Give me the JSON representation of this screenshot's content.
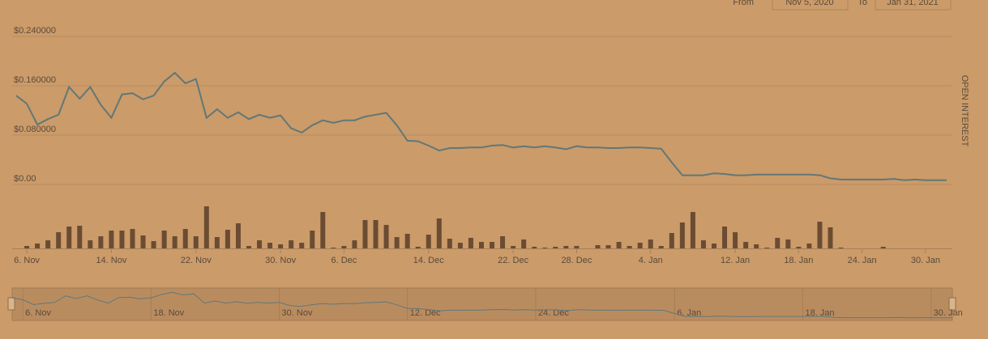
{
  "chart_data": {
    "type": "line",
    "y_label": "OPEN INTEREST",
    "range_selector": {
      "from_label": "From",
      "from": "Nov 5, 2020",
      "to_label": "To",
      "to": "Jan 31, 2021"
    },
    "x": [
      "2020-11-05",
      "2020-11-06",
      "2020-11-07",
      "2020-11-08",
      "2020-11-09",
      "2020-11-10",
      "2020-11-11",
      "2020-11-12",
      "2020-11-13",
      "2020-11-14",
      "2020-11-15",
      "2020-11-16",
      "2020-11-17",
      "2020-11-18",
      "2020-11-19",
      "2020-11-20",
      "2020-11-21",
      "2020-11-22",
      "2020-11-23",
      "2020-11-24",
      "2020-11-25",
      "2020-11-26",
      "2020-11-27",
      "2020-11-28",
      "2020-11-29",
      "2020-11-30",
      "2020-12-01",
      "2020-12-02",
      "2020-12-03",
      "2020-12-04",
      "2020-12-05",
      "2020-12-06",
      "2020-12-07",
      "2020-12-08",
      "2020-12-09",
      "2020-12-10",
      "2020-12-11",
      "2020-12-12",
      "2020-12-13",
      "2020-12-14",
      "2020-12-15",
      "2020-12-16",
      "2020-12-17",
      "2020-12-18",
      "2020-12-19",
      "2020-12-20",
      "2020-12-21",
      "2020-12-22",
      "2020-12-23",
      "2020-12-24",
      "2020-12-25",
      "2020-12-26",
      "2020-12-27",
      "2020-12-28",
      "2020-12-29",
      "2020-12-30",
      "2020-12-31",
      "2021-01-01",
      "2021-01-02",
      "2021-01-03",
      "2021-01-04",
      "2021-01-05",
      "2021-01-06",
      "2021-01-07",
      "2021-01-08",
      "2021-01-09",
      "2021-01-10",
      "2021-01-11",
      "2021-01-12",
      "2021-01-13",
      "2021-01-14",
      "2021-01-15",
      "2021-01-16",
      "2021-01-17",
      "2021-01-18",
      "2021-01-19",
      "2021-01-20",
      "2021-01-21",
      "2021-01-22",
      "2021-01-23",
      "2021-01-24",
      "2021-01-25",
      "2021-01-26",
      "2021-01-27",
      "2021-01-28",
      "2021-01-29",
      "2021-01-30",
      "2021-01-31",
      "2021-02-01"
    ],
    "series": [
      {
        "color": "#627777",
        "values": [
          0.144,
          0.131,
          0.097,
          0.106,
          0.113,
          0.158,
          0.139,
          0.158,
          0.129,
          0.108,
          0.146,
          0.148,
          0.138,
          0.144,
          0.167,
          0.181,
          0.164,
          0.171,
          0.108,
          0.122,
          0.108,
          0.117,
          0.106,
          0.113,
          0.108,
          0.112,
          0.091,
          0.084,
          0.096,
          0.104,
          0.1,
          0.104,
          0.104,
          0.11,
          0.113,
          0.116,
          0.096,
          0.071,
          0.07,
          0.063,
          0.055,
          0.059,
          0.059,
          0.06,
          0.06,
          0.063,
          0.064,
          0.06,
          0.062,
          0.06,
          0.062,
          0.06,
          0.057,
          0.062,
          0.06,
          0.06,
          0.059,
          0.059,
          0.06,
          0.06,
          0.059,
          0.058,
          0.036,
          0.015,
          0.015,
          0.015,
          0.018,
          0.017,
          0.015,
          0.015,
          0.016,
          0.016,
          0.016,
          0.016,
          0.016,
          0.016,
          0.015,
          0.01,
          0.008,
          0.008,
          0.008,
          0.008,
          0.008,
          0.009,
          0.007,
          0.008,
          0.007,
          0.007,
          0.007
        ]
      }
    ],
    "volume": {
      "color": "#6b4c33",
      "ylim": [
        0,
        55
      ],
      "values": [
        0,
        3,
        6,
        10,
        20,
        27,
        28,
        10,
        15,
        22,
        22,
        24,
        16,
        9,
        22,
        15,
        24,
        15,
        52,
        14,
        23,
        31,
        3,
        10,
        7,
        5,
        10,
        7,
        22,
        45,
        1,
        3,
        10,
        35,
        35,
        29,
        14,
        18,
        2,
        17,
        37,
        12,
        7,
        13,
        8,
        8,
        15,
        3,
        11,
        2,
        1,
        2,
        3,
        3,
        0,
        4,
        4,
        8,
        3,
        7,
        11,
        3,
        19,
        32,
        45,
        10,
        6,
        27,
        20,
        8,
        5,
        1,
        13,
        11,
        2,
        6,
        33,
        26,
        1,
        0,
        0,
        0,
        2,
        0,
        0,
        0,
        0,
        0,
        0
      ]
    },
    "xlim": [
      "2020-11-05",
      "2021-02-01"
    ],
    "ylim": [
      0,
      0.24
    ],
    "yticks": [
      {
        "value": 0,
        "label": "$0.00"
      },
      {
        "value": 0.08,
        "label": "$0.080000"
      },
      {
        "value": 0.16,
        "label": "$0.160000"
      },
      {
        "value": 0.24,
        "label": "$0.240000"
      }
    ],
    "xticks": [
      {
        "value": "2020-11-06",
        "label": "6. Nov"
      },
      {
        "value": "2020-11-14",
        "label": "14. Nov"
      },
      {
        "value": "2020-11-22",
        "label": "22. Nov"
      },
      {
        "value": "2020-11-30",
        "label": "30. Nov"
      },
      {
        "value": "2020-12-06",
        "label": "6. Dec"
      },
      {
        "value": "2020-12-14",
        "label": "14. Dec"
      },
      {
        "value": "2020-12-22",
        "label": "22. Dec"
      },
      {
        "value": "2020-12-28",
        "label": "28. Dec"
      },
      {
        "value": "2021-01-04",
        "label": "4. Jan"
      },
      {
        "value": "2021-01-12",
        "label": "12. Jan"
      },
      {
        "value": "2021-01-18",
        "label": "18. Jan"
      },
      {
        "value": "2021-01-24",
        "label": "24. Jan"
      },
      {
        "value": "2021-01-30",
        "label": "30. Jan"
      }
    ],
    "navigator_ylim": [
      0,
      0.2
    ],
    "navigator_xticks": [
      {
        "value": "2020-11-06",
        "label": "6. Nov"
      },
      {
        "value": "2020-11-18",
        "label": "18. Nov"
      },
      {
        "value": "2020-11-30",
        "label": "30. Nov"
      },
      {
        "value": "2020-12-12",
        "label": "12. Dec"
      },
      {
        "value": "2020-12-24",
        "label": "24. Dec"
      },
      {
        "value": "2021-01-06",
        "label": "6. Jan"
      },
      {
        "value": "2021-01-18",
        "label": "18. Jan"
      },
      {
        "value": "2021-01-30",
        "label": "30. Jan"
      }
    ],
    "grid": true
  }
}
